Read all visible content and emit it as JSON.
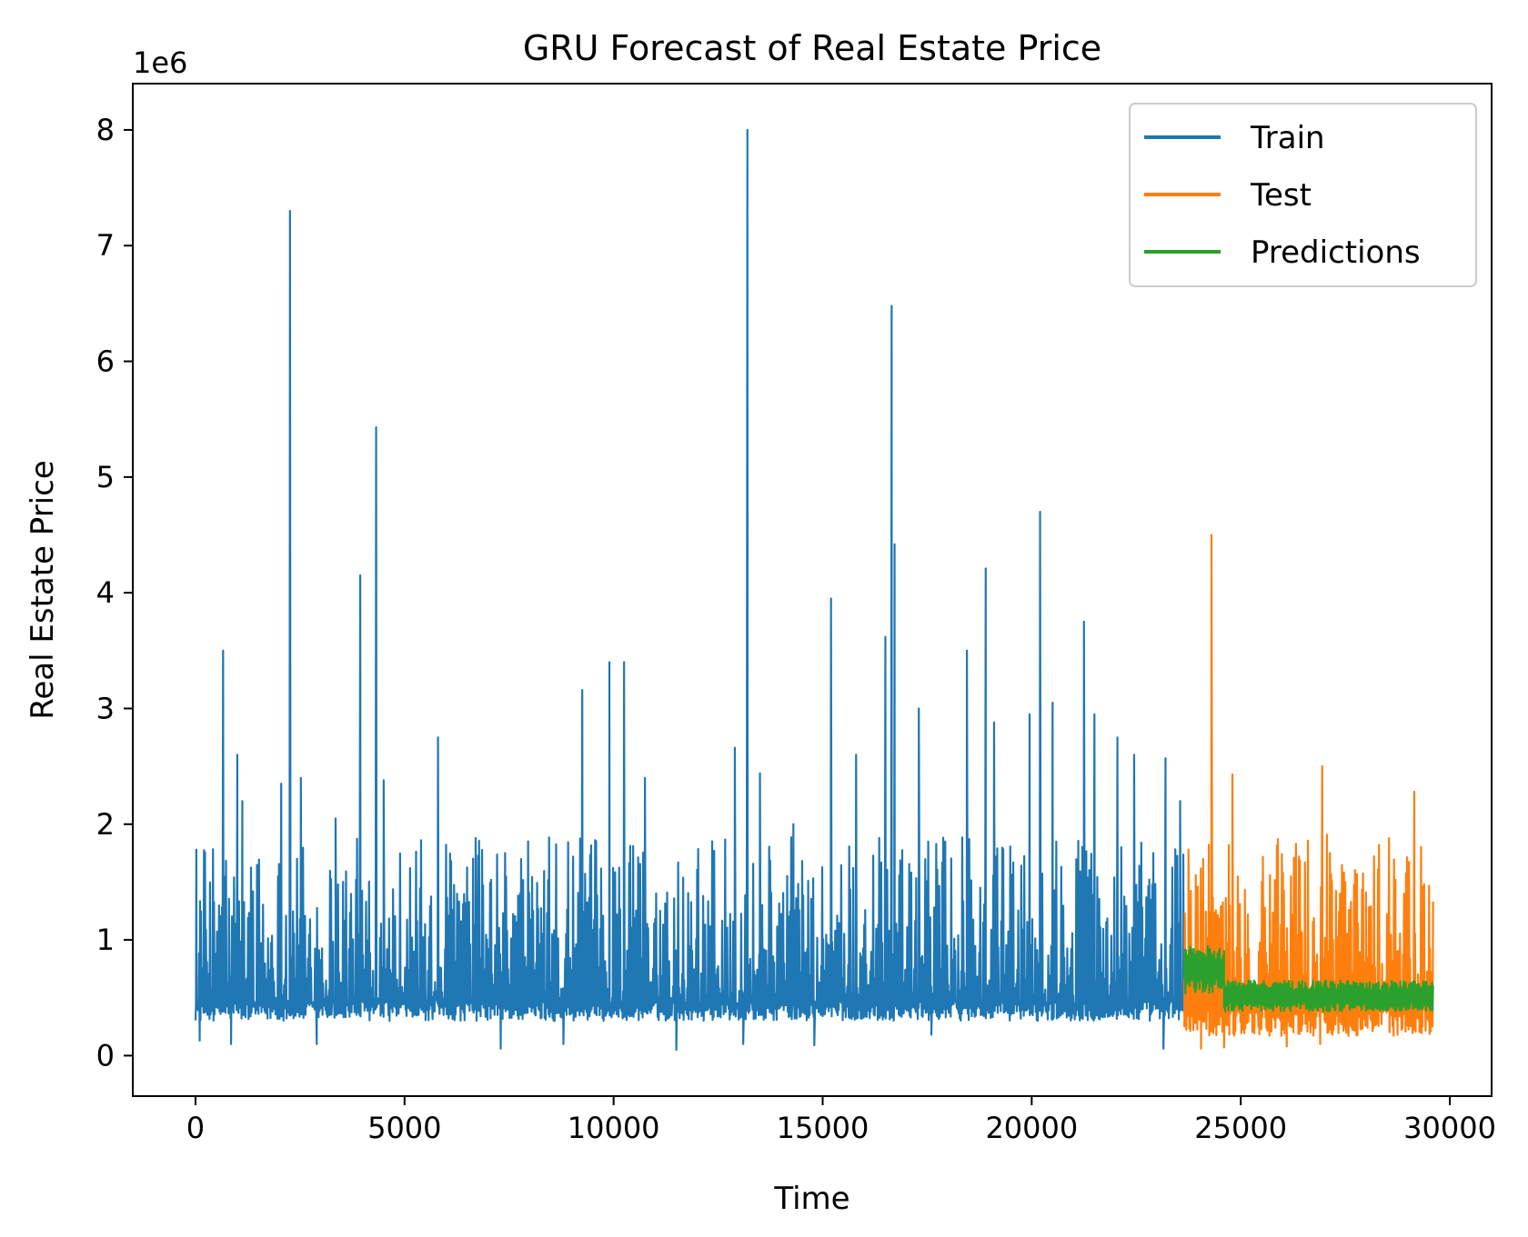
{
  "chart_data": {
    "type": "line",
    "title": "GRU Forecast of Real Estate Price",
    "xlabel": "Time",
    "ylabel": "Real Estate Price",
    "y_scale_label": "1e6",
    "xlim": [
      -1500,
      31000
    ],
    "ylim": [
      -350000,
      8400000
    ],
    "x_ticks": [
      0,
      5000,
      10000,
      15000,
      20000,
      25000,
      30000
    ],
    "x_tick_labels": [
      "0",
      "5000",
      "10000",
      "15000",
      "20000",
      "25000",
      "30000"
    ],
    "y_ticks": [
      0,
      1000000,
      2000000,
      3000000,
      4000000,
      5000000,
      6000000,
      7000000,
      8000000
    ],
    "y_tick_labels": [
      "0",
      "1",
      "2",
      "3",
      "4",
      "5",
      "6",
      "7",
      "8"
    ],
    "grid": false,
    "legend_position": "top-right",
    "series": [
      {
        "name": "Train",
        "color": "#1f77b4",
        "x_range": [
          0,
          23650
        ],
        "baseline": 450000,
        "band": [
          300000,
          1350000
        ],
        "peaks": [
          {
            "x": 20,
            "y": 1780000
          },
          {
            "x": 660,
            "y": 3500000
          },
          {
            "x": 1000,
            "y": 2600000
          },
          {
            "x": 1120,
            "y": 2200000
          },
          {
            "x": 2050,
            "y": 2350000
          },
          {
            "x": 2260,
            "y": 7300000
          },
          {
            "x": 2520,
            "y": 2400000
          },
          {
            "x": 3350,
            "y": 2050000
          },
          {
            "x": 3940,
            "y": 4150000
          },
          {
            "x": 4320,
            "y": 5430000
          },
          {
            "x": 4500,
            "y": 2380000
          },
          {
            "x": 5800,
            "y": 2750000
          },
          {
            "x": 6700,
            "y": 1880000
          },
          {
            "x": 9250,
            "y": 3160000
          },
          {
            "x": 9900,
            "y": 3400000
          },
          {
            "x": 10250,
            "y": 3400000
          },
          {
            "x": 10750,
            "y": 2400000
          },
          {
            "x": 12900,
            "y": 2660000
          },
          {
            "x": 13200,
            "y": 8000000
          },
          {
            "x": 13500,
            "y": 2440000
          },
          {
            "x": 14300,
            "y": 2000000
          },
          {
            "x": 15200,
            "y": 3950000
          },
          {
            "x": 15800,
            "y": 2600000
          },
          {
            "x": 16500,
            "y": 3620000
          },
          {
            "x": 16650,
            "y": 6480000
          },
          {
            "x": 16720,
            "y": 4420000
          },
          {
            "x": 17300,
            "y": 3000000
          },
          {
            "x": 18450,
            "y": 3500000
          },
          {
            "x": 18900,
            "y": 4210000
          },
          {
            "x": 19100,
            "y": 2880000
          },
          {
            "x": 19950,
            "y": 2950000
          },
          {
            "x": 20200,
            "y": 4700000
          },
          {
            "x": 20500,
            "y": 3050000
          },
          {
            "x": 21250,
            "y": 3750000
          },
          {
            "x": 21500,
            "y": 2950000
          },
          {
            "x": 22050,
            "y": 2750000
          },
          {
            "x": 22450,
            "y": 2600000
          },
          {
            "x": 23200,
            "y": 2570000
          },
          {
            "x": 23550,
            "y": 2200000
          }
        ],
        "dips": [
          {
            "x": 100,
            "y": 130000
          },
          {
            "x": 850,
            "y": 100000
          },
          {
            "x": 2900,
            "y": 100000
          },
          {
            "x": 7300,
            "y": 60000
          },
          {
            "x": 8800,
            "y": 100000
          },
          {
            "x": 11500,
            "y": 50000
          },
          {
            "x": 13100,
            "y": 100000
          },
          {
            "x": 14800,
            "y": 90000
          },
          {
            "x": 17600,
            "y": 180000
          },
          {
            "x": 23150,
            "y": 60000
          }
        ]
      },
      {
        "name": "Test",
        "color": "#ff7f0e",
        "x_range": [
          23650,
          29600
        ],
        "baseline": 400000,
        "band": [
          170000,
          1350000
        ],
        "peaks": [
          {
            "x": 23750,
            "y": 1780000
          },
          {
            "x": 24100,
            "y": 1700000
          },
          {
            "x": 24300,
            "y": 4500000
          },
          {
            "x": 24800,
            "y": 2430000
          },
          {
            "x": 25700,
            "y": 1560000
          },
          {
            "x": 26200,
            "y": 1550000
          },
          {
            "x": 26950,
            "y": 2500000
          },
          {
            "x": 27500,
            "y": 1500000
          },
          {
            "x": 28700,
            "y": 1520000
          },
          {
            "x": 29150,
            "y": 2280000
          },
          {
            "x": 29350,
            "y": 1440000
          }
        ],
        "dips": [
          {
            "x": 24050,
            "y": 60000
          },
          {
            "x": 24600,
            "y": 70000
          },
          {
            "x": 26100,
            "y": 80000
          },
          {
            "x": 26900,
            "y": 100000
          }
        ]
      },
      {
        "name": "Predictions",
        "color": "#2ca02c",
        "x_range": [
          23650,
          29600
        ],
        "segments": [
          {
            "x": [
              23650,
              24600
            ],
            "band": [
              530000,
              950000
            ]
          },
          {
            "x": [
              24600,
              29600
            ],
            "band": [
              380000,
              650000
            ]
          }
        ]
      }
    ]
  }
}
